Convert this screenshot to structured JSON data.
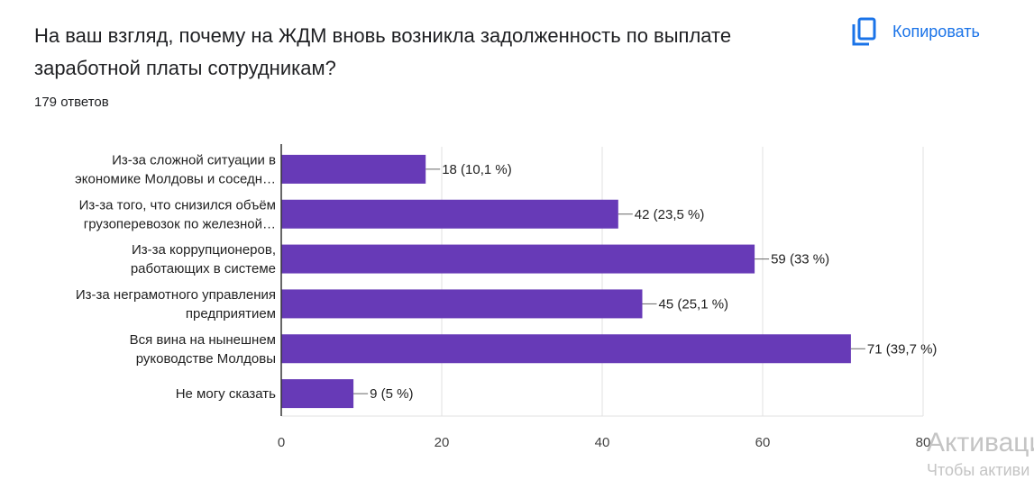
{
  "header": {
    "title": "На ваш взгляд, почему на ЖДМ вновь возникла задолженность по выплате заработной платы сотрудникам?",
    "response_count": "179 ответов",
    "copy_label": "Копировать",
    "copy_icon": "copy-icon"
  },
  "chart_data": {
    "type": "bar",
    "orientation": "horizontal",
    "categories": [
      [
        "Из-за сложной ситуации в",
        "экономике Молдовы и соседн…"
      ],
      [
        "Из-за того, что снизился объём",
        "грузоперевозок по железной…"
      ],
      [
        "Из-за коррупционеров,",
        "работающих в системе"
      ],
      [
        "Из-за неграмотного управления",
        "предприятием"
      ],
      [
        "Вся вина на нынешнем",
        "руководстве Молдовы"
      ],
      [
        "Не могу сказать"
      ]
    ],
    "values": [
      18,
      42,
      59,
      45,
      71,
      9
    ],
    "data_labels": [
      "18 (10,1 %)",
      "42 (23,5 %)",
      "59 (33 %)",
      "45 (25,1 %)",
      "71 (39,7 %)",
      "9 (5 %)"
    ],
    "xlim": [
      0,
      80
    ],
    "xticks": [
      0,
      20,
      40,
      60,
      80
    ],
    "grid": true,
    "bar_color": "#673ab7"
  },
  "watermark": {
    "line1": "Активаци",
    "line2": "Чтобы активи"
  }
}
